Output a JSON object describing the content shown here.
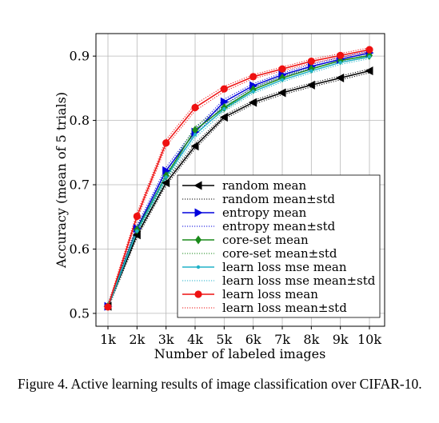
{
  "chart_data": {
    "type": "line",
    "xlabel": "Number of labeled images",
    "ylabel": "Accuracy (mean of 5 trials)",
    "categories": [
      "1k",
      "2k",
      "3k",
      "4k",
      "5k",
      "6k",
      "7k",
      "8k",
      "9k",
      "10k"
    ],
    "ylim": [
      0.48,
      0.935
    ],
    "yticks": [
      0.5,
      0.6,
      0.7,
      0.8,
      0.9
    ],
    "grid": true,
    "legend_position": "lower-right",
    "series": [
      {
        "name": "random mean",
        "std_name": "random mean±std",
        "color": "#000000",
        "marker": "triangle-left",
        "values": [
          0.511,
          0.622,
          0.703,
          0.76,
          0.805,
          0.828,
          0.843,
          0.855,
          0.866,
          0.877
        ],
        "std": [
          0.004,
          0.004,
          0.004,
          0.004,
          0.003,
          0.003,
          0.003,
          0.003,
          0.003,
          0.003
        ]
      },
      {
        "name": "entropy mean",
        "std_name": "entropy mean±std",
        "color": "#0000dd",
        "marker": "triangle-right",
        "values": [
          0.511,
          0.632,
          0.722,
          0.782,
          0.829,
          0.854,
          0.871,
          0.884,
          0.895,
          0.905
        ],
        "std": [
          0.004,
          0.005,
          0.005,
          0.005,
          0.004,
          0.003,
          0.003,
          0.003,
          0.003,
          0.003
        ]
      },
      {
        "name": "core-set mean",
        "std_name": "core-set mean±std",
        "color": "#1a8a1a",
        "marker": "diamond",
        "values": [
          0.511,
          0.63,
          0.714,
          0.785,
          0.82,
          0.848,
          0.866,
          0.88,
          0.893,
          0.901
        ],
        "std": [
          0.004,
          0.005,
          0.005,
          0.005,
          0.004,
          0.003,
          0.003,
          0.003,
          0.003,
          0.003
        ]
      },
      {
        "name": "learn loss mse mean",
        "std_name": "learn loss mse mean±std",
        "color": "#20b2c8",
        "marker": "point",
        "values": [
          0.511,
          0.628,
          0.712,
          0.778,
          0.818,
          0.845,
          0.863,
          0.877,
          0.89,
          0.899
        ],
        "std": [
          0.004,
          0.005,
          0.005,
          0.005,
          0.004,
          0.003,
          0.003,
          0.003,
          0.003,
          0.003
        ]
      },
      {
        "name": "learn loss mean",
        "std_name": "learn loss mean±std",
        "color": "#ee1111",
        "marker": "circle",
        "values": [
          0.51,
          0.651,
          0.765,
          0.82,
          0.849,
          0.868,
          0.88,
          0.892,
          0.901,
          0.91
        ],
        "std": [
          0.004,
          0.005,
          0.005,
          0.005,
          0.004,
          0.003,
          0.003,
          0.003,
          0.003,
          0.003
        ]
      }
    ]
  },
  "caption": "Figure 4. Active learning results of image classification over CIFAR-10."
}
